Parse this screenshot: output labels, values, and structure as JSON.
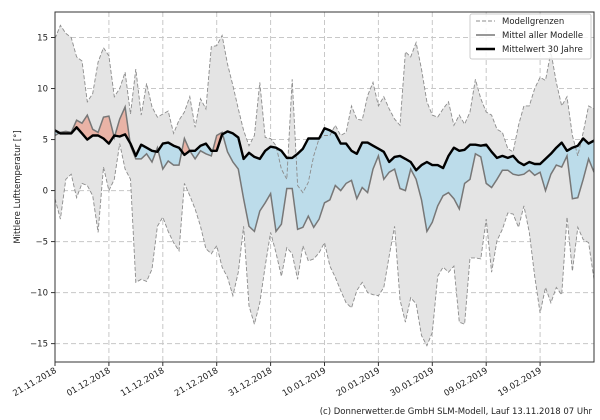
{
  "chart_data": {
    "type": "area",
    "title": "",
    "xlabel": "",
    "ylabel": "Mittlere Lufttemperatur [°]",
    "ylim": [
      -16.8,
      17.5
    ],
    "xlim_days": [
      0,
      100
    ],
    "grid": true,
    "legend_placement": "top-right",
    "x_start_date": "21.11.2018",
    "x_ticks": [
      {
        "day": 0,
        "label": "21.11.2018"
      },
      {
        "day": 10,
        "label": "01.12.2018"
      },
      {
        "day": 20,
        "label": "11.12.2018"
      },
      {
        "day": 30,
        "label": "21.12.2018"
      },
      {
        "day": 40,
        "label": "31.12.2018"
      },
      {
        "day": 50,
        "label": "10.01.2019"
      },
      {
        "day": 60,
        "label": "20.01.2019"
      },
      {
        "day": 70,
        "label": "30.01.2019"
      },
      {
        "day": 80,
        "label": "09.02.2019"
      },
      {
        "day": 90,
        "label": "19.02.2019"
      }
    ],
    "y_ticks": [
      {
        "value": 15,
        "label": "15"
      },
      {
        "value": 10,
        "label": "10"
      },
      {
        "value": 5,
        "label": "5"
      },
      {
        "value": 0,
        "label": "0"
      },
      {
        "value": -5,
        "label": "−5"
      },
      {
        "value": -10,
        "label": "−10"
      },
      {
        "value": -15,
        "label": "−15"
      }
    ],
    "legend": [
      "Modellgrenzen",
      "Mittel aller Modelle",
      "Mittelwert 30 Jahre"
    ],
    "series": [
      {
        "name": "Modellgrenzen (oben)",
        "values": [
          14.9,
          16.2,
          15.4,
          15.0,
          13.1,
          12.7,
          8.7,
          9.5,
          12.6,
          14.0,
          13.2,
          9.2,
          10.0,
          11.6,
          7.5,
          11.9,
          7.4,
          10.5,
          8.2,
          7.2,
          7.5,
          7.8,
          5.6,
          6.9,
          7.7,
          9.2,
          6.2,
          9.0,
          8.0,
          14.1,
          14.2,
          15.2,
          12.4,
          10.3,
          8.0,
          5.9,
          4.4,
          5.4,
          10.6,
          5.2,
          5.1,
          4.4,
          2.1,
          1.1,
          10.9,
          0.5,
          -0.2,
          0.8,
          3.4,
          5.1,
          5.4,
          5.4,
          6.4,
          5.4,
          5.7,
          8.3,
          7.0,
          6.9,
          9.3,
          10.6,
          8.3,
          9.2,
          8.0,
          7.0,
          6.4,
          13.6,
          13.1,
          14.5,
          11.9,
          8.7,
          7.4,
          7.2,
          8.0,
          8.7,
          6.4,
          7.4,
          6.5,
          7.7,
          10.9,
          9.0,
          7.7,
          7.4,
          6.0,
          5.7,
          4.1,
          3.8,
          6.4,
          8.3,
          8.3,
          10.0,
          11.1,
          10.8,
          13.6,
          10.6,
          8.3,
          9.2,
          5.4,
          3.4,
          5.7,
          8.3,
          8.0
        ]
      },
      {
        "name": "Modellgrenzen (unten)",
        "values": [
          -0.8,
          -2.8,
          1.1,
          1.6,
          -0.7,
          0.7,
          0.5,
          -0.5,
          -4.1,
          2.3,
          0.0,
          1.1,
          4.6,
          2.1,
          1.1,
          -9.0,
          -8.7,
          -8.9,
          -7.7,
          -3.5,
          -2.6,
          -4.0,
          -5.1,
          -5.9,
          0.7,
          -0.5,
          -1.8,
          -3.5,
          -5.7,
          -6.2,
          -5.4,
          -7.5,
          -8.5,
          -10.3,
          -8.0,
          -3.5,
          -11.3,
          -13.1,
          -11.0,
          -7.4,
          -4.1,
          -6.1,
          -8.4,
          -5.6,
          -6.2,
          -8.7,
          -5.4,
          -6.9,
          -6.7,
          -6.1,
          -5.1,
          -7.4,
          -8.5,
          -9.8,
          -11.0,
          -11.5,
          -9.8,
          -9.0,
          -10.0,
          -10.2,
          -10.3,
          -9.5,
          -6.4,
          -3.5,
          -10.7,
          -12.9,
          -10.5,
          -11.1,
          -14.2,
          -15.2,
          -13.9,
          -8.4,
          -7.5,
          -8.0,
          -7.4,
          -12.9,
          -13.1,
          -6.6,
          -6.6,
          -6.7,
          -2.8,
          -8.0,
          -4.9,
          -3.8,
          -2.2,
          -2.3,
          -3.6,
          -1.5,
          -4.1,
          -8.4,
          -12.0,
          -9.5,
          -11.0,
          -9.5,
          -10.2,
          -2.6,
          -7.9,
          -3.6,
          -4.8,
          -5.1,
          -8.7
        ]
      },
      {
        "name": "Mittel aller Modelle",
        "values": [
          5.4,
          5.7,
          5.8,
          5.7,
          6.9,
          6.6,
          7.4,
          6.0,
          5.7,
          7.2,
          7.3,
          5.2,
          7.0,
          8.2,
          4.4,
          3.1,
          3.1,
          3.6,
          2.8,
          4.2,
          2.1,
          2.9,
          2.5,
          2.5,
          5.1,
          3.9,
          3.1,
          3.9,
          3.6,
          3.4,
          5.4,
          5.7,
          3.8,
          2.8,
          2.1,
          -0.8,
          -3.5,
          -4.0,
          -2.0,
          -1.2,
          -0.3,
          -4.0,
          -3.3,
          0.2,
          0.2,
          -3.8,
          -3.6,
          -2.5,
          -3.6,
          -2.8,
          -1.2,
          -0.9,
          0.5,
          0.0,
          0.7,
          1.0,
          -0.8,
          0.3,
          -0.2,
          2.1,
          3.4,
          1.1,
          1.8,
          2.1,
          0.2,
          0.0,
          2.1,
          1.1,
          -0.9,
          -4.0,
          -3.1,
          -1.5,
          -0.5,
          -0.2,
          -0.8,
          -1.8,
          0.7,
          1.1,
          3.6,
          3.3,
          0.7,
          0.3,
          1.1,
          2.0,
          2.0,
          1.6,
          1.5,
          1.6,
          2.0,
          1.5,
          1.8,
          0.0,
          1.6,
          2.5,
          2.3,
          3.4,
          -0.8,
          -0.7,
          1.1,
          3.1,
          1.8
        ]
      },
      {
        "name": "Mittelwert 30 Jahre",
        "values": [
          5.9,
          5.6,
          5.6,
          5.6,
          6.2,
          5.6,
          5.0,
          5.4,
          5.4,
          5.1,
          4.6,
          5.4,
          5.3,
          5.5,
          4.6,
          3.4,
          4.5,
          4.2,
          3.9,
          3.8,
          4.6,
          4.7,
          4.4,
          4.2,
          3.5,
          3.9,
          3.9,
          4.4,
          4.6,
          3.9,
          3.9,
          5.5,
          5.8,
          5.6,
          5.2,
          3.1,
          3.7,
          3.3,
          3.1,
          3.9,
          4.3,
          4.2,
          3.9,
          3.2,
          3.2,
          3.6,
          4.1,
          5.1,
          5.1,
          5.1,
          6.1,
          5.9,
          5.6,
          4.6,
          4.6,
          3.9,
          3.6,
          4.7,
          4.7,
          4.4,
          4.1,
          3.8,
          2.8,
          3.3,
          3.4,
          3.1,
          2.8,
          2.0,
          2.5,
          2.8,
          2.5,
          2.5,
          2.2,
          3.4,
          4.2,
          3.9,
          4.0,
          4.5,
          4.5,
          4.4,
          4.5,
          3.8,
          3.2,
          3.4,
          3.2,
          3.4,
          2.8,
          2.5,
          2.8,
          2.6,
          2.6,
          3.1,
          3.6,
          4.2,
          4.7,
          3.9,
          4.2,
          4.4,
          5.1,
          4.6,
          4.9
        ]
      }
    ],
    "colors": {
      "band": "#e4e4e4",
      "band_edge": "#8c8c8c",
      "model_mean": "#777777",
      "climate": "#000000",
      "warmer": "#e9b3a6",
      "colder": "#bcdcea",
      "upper_below_climate": "#d8f1fb"
    }
  },
  "footer": "(c) Donnerwetter.de GmbH SLM-Modell, Lauf 13.11.2018 07 Uhr"
}
